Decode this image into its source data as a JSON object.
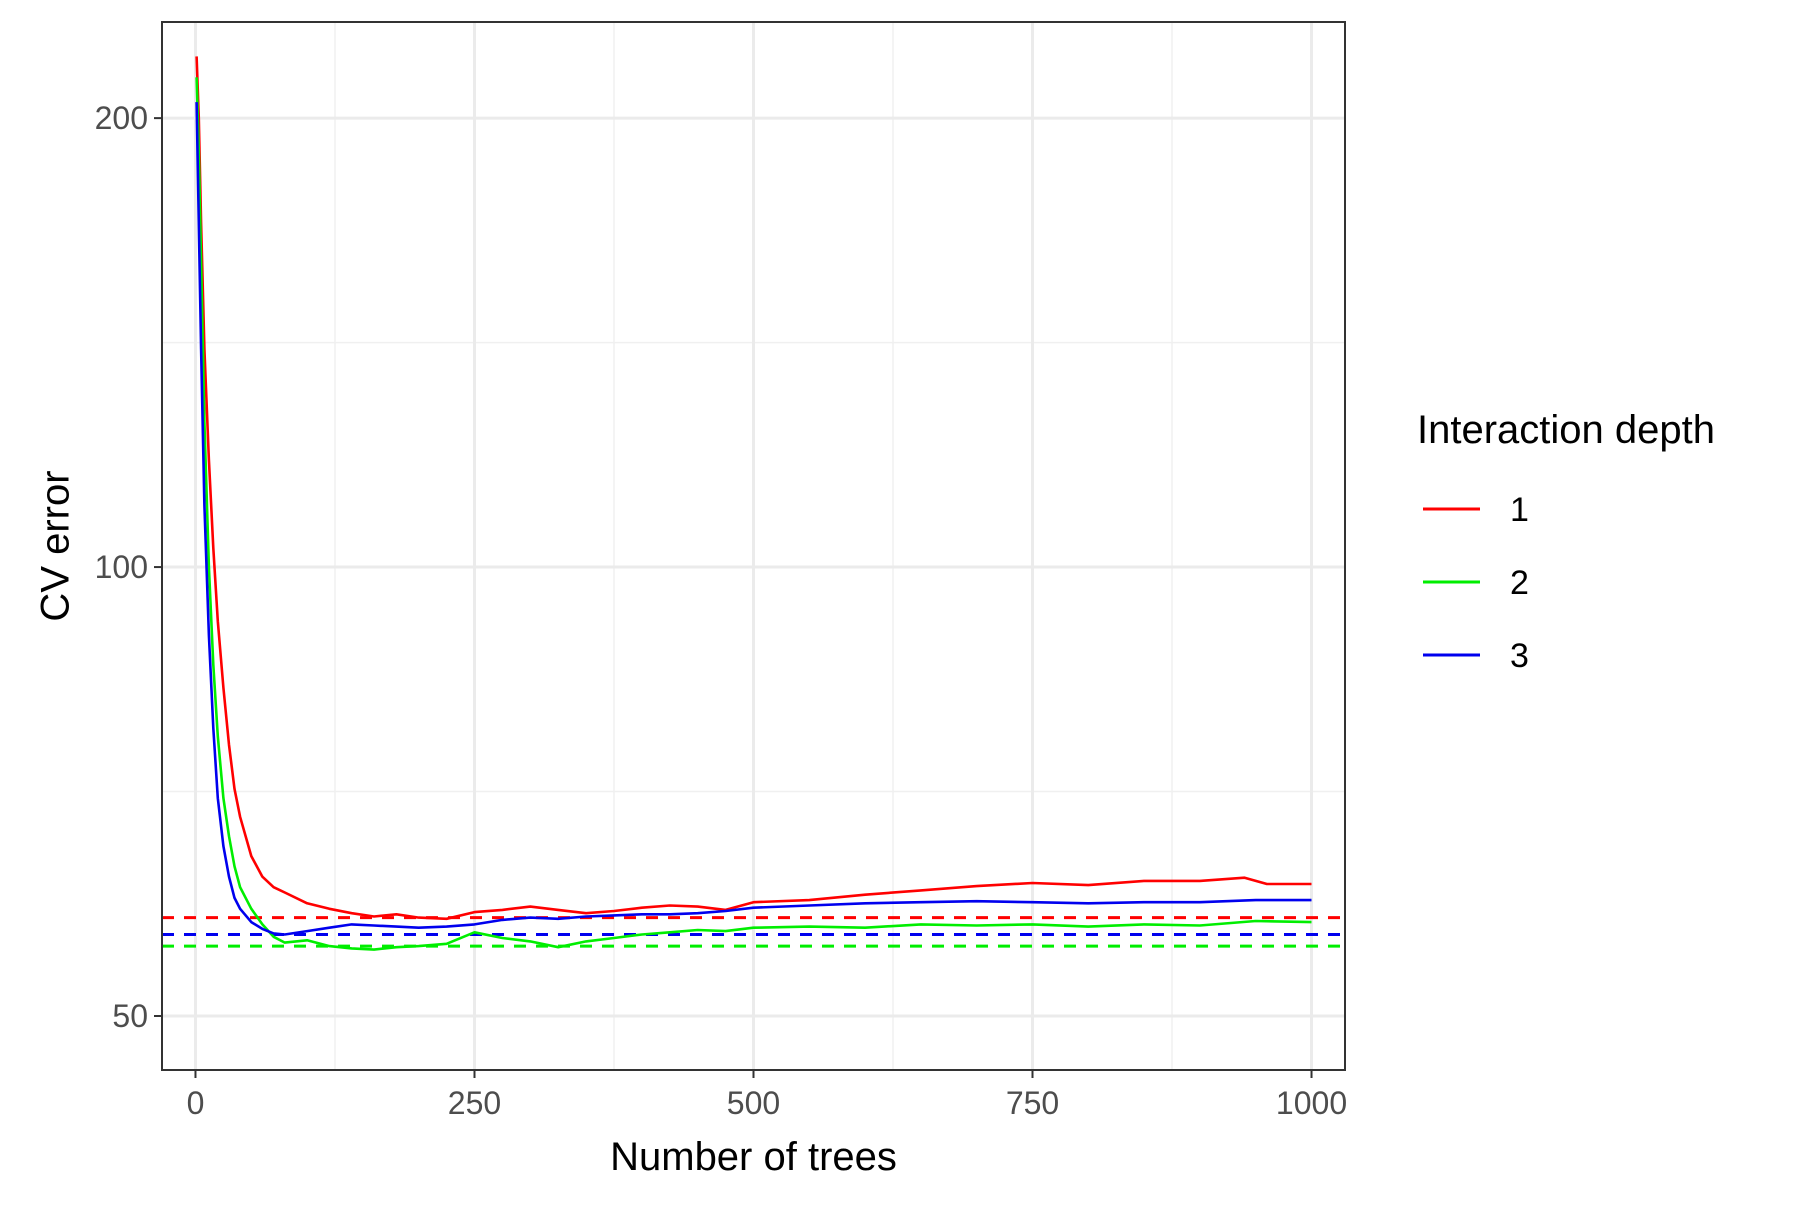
{
  "chart_data": {
    "type": "line",
    "title": "",
    "xlabel": "Number of trees",
    "ylabel": "CV error",
    "xlim": [
      -30,
      1030
    ],
    "ylim": [
      46,
      232
    ],
    "x_ticks": [
      0,
      250,
      500,
      750,
      1000
    ],
    "x_tick_labels": [
      "0",
      "250",
      "500",
      "750",
      "1000"
    ],
    "y_ticks": [
      50,
      100,
      200
    ],
    "y_tick_labels": [
      "50",
      "100",
      "200"
    ],
    "y_scale": "log",
    "grid": true,
    "legend": {
      "title": "Interaction depth",
      "placement": "right"
    },
    "series": [
      {
        "name": "1",
        "color": "#ff0000",
        "x": [
          1,
          3,
          5,
          8,
          12,
          16,
          20,
          25,
          30,
          35,
          40,
          50,
          60,
          70,
          80,
          100,
          120,
          140,
          160,
          180,
          200,
          225,
          250,
          275,
          300,
          325,
          350,
          375,
          400,
          425,
          450,
          475,
          500,
          550,
          600,
          650,
          700,
          750,
          800,
          850,
          900,
          940,
          960,
          1000
        ],
        "y": [
          220,
          200,
          170,
          140,
          118,
          103,
          92,
          83,
          76,
          71,
          68,
          64,
          62,
          61,
          60.5,
          59.5,
          59,
          58.6,
          58.3,
          58.5,
          58.2,
          58.1,
          58.7,
          58.9,
          59.2,
          58.9,
          58.6,
          58.8,
          59.1,
          59.3,
          59.2,
          58.9,
          59.6,
          59.8,
          60.3,
          60.7,
          61.1,
          61.4,
          61.2,
          61.6,
          61.6,
          61.9,
          61.3,
          61.3
        ]
      },
      {
        "name": "2",
        "color": "#00ee00",
        "x": [
          1,
          3,
          5,
          8,
          12,
          16,
          20,
          25,
          30,
          35,
          40,
          50,
          60,
          70,
          80,
          100,
          120,
          140,
          160,
          180,
          200,
          225,
          250,
          275,
          300,
          325,
          350,
          375,
          400,
          425,
          450,
          475,
          500,
          550,
          600,
          650,
          700,
          750,
          800,
          850,
          900,
          950,
          1000
        ],
        "y": [
          213,
          190,
          160,
          125,
          100,
          86,
          77,
          70,
          66,
          63,
          61,
          59,
          57.6,
          56.5,
          56,
          56.2,
          55.7,
          55.5,
          55.4,
          55.6,
          55.7,
          55.9,
          56.9,
          56.4,
          56.1,
          55.6,
          56.1,
          56.4,
          56.7,
          56.9,
          57.1,
          57.0,
          57.3,
          57.4,
          57.3,
          57.6,
          57.5,
          57.6,
          57.4,
          57.6,
          57.5,
          57.9,
          57.8
        ]
      },
      {
        "name": "3",
        "color": "#0000ee",
        "x": [
          1,
          3,
          5,
          8,
          12,
          16,
          20,
          25,
          30,
          35,
          40,
          50,
          60,
          70,
          80,
          100,
          120,
          140,
          160,
          180,
          200,
          225,
          250,
          275,
          300,
          325,
          350,
          375,
          400,
          425,
          450,
          475,
          500,
          550,
          600,
          650,
          700,
          750,
          800,
          850,
          900,
          950,
          1000
        ],
        "y": [
          205,
          170,
          140,
          110,
          90,
          78,
          70,
          65,
          62,
          60,
          59,
          57.8,
          57.2,
          56.8,
          56.7,
          57.0,
          57.3,
          57.6,
          57.5,
          57.4,
          57.3,
          57.4,
          57.6,
          58.0,
          58.2,
          58.1,
          58.3,
          58.4,
          58.5,
          58.5,
          58.6,
          58.8,
          59.1,
          59.3,
          59.5,
          59.6,
          59.7,
          59.6,
          59.5,
          59.6,
          59.6,
          59.8,
          59.8
        ]
      }
    ],
    "reference_lines": [
      {
        "series": "1",
        "y": 58.2,
        "color": "#ff0000",
        "style": "dashed"
      },
      {
        "series": "2",
        "y": 55.7,
        "color": "#00ee00",
        "style": "dashed"
      },
      {
        "series": "3",
        "y": 56.7,
        "color": "#0000ee",
        "style": "dashed"
      }
    ]
  }
}
